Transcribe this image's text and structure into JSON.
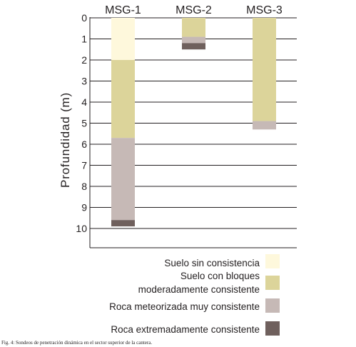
{
  "chart_data": {
    "type": "bar",
    "ylabel": "Profundidad (m)",
    "ylim": [
      0,
      11
    ],
    "yticks": [
      "0",
      "1",
      "2",
      "3",
      "4",
      "5",
      "6",
      "7",
      "8",
      "9",
      "10"
    ],
    "y_inverted": true,
    "grid": true,
    "legend_position": "bottom-right",
    "categories": [
      "MSG-1",
      "MSG-2",
      "MSG-3"
    ],
    "layer_types": [
      {
        "key": "suelo_sin",
        "name": "Suelo sin consistencia",
        "lines": [
          "Suelo sin consistencia"
        ],
        "color": "#fef8dc"
      },
      {
        "key": "suelo_bloques",
        "name": "Suelo con bloques moderadamente consistente",
        "lines": [
          "Suelo con bloques",
          "moderadamente consistente"
        ],
        "color": "#dcd49a"
      },
      {
        "key": "roca_meteorizada",
        "name": "Roca meteorizada muy consistente",
        "lines": [
          "Roca meteorizada muy consistente"
        ],
        "color": "#c6b9b6"
      },
      {
        "key": "roca_extrema",
        "name": "Roca extremadamente consistente",
        "lines": [
          "Roca extremadamente consistente"
        ],
        "color": "#6f605d"
      }
    ],
    "columns": [
      {
        "name": "MSG-1",
        "layers": [
          {
            "type": "suelo_sin",
            "from": 0,
            "to": 2.0
          },
          {
            "type": "suelo_bloques",
            "from": 2.0,
            "to": 5.7
          },
          {
            "type": "roca_meteorizada",
            "from": 5.7,
            "to": 9.6
          },
          {
            "type": "roca_extrema",
            "from": 9.6,
            "to": 9.9
          }
        ]
      },
      {
        "name": "MSG-2",
        "layers": [
          {
            "type": "suelo_bloques",
            "from": 0,
            "to": 0.9
          },
          {
            "type": "roca_meteorizada",
            "from": 0.9,
            "to": 1.2
          },
          {
            "type": "roca_extrema",
            "from": 1.2,
            "to": 1.5
          }
        ]
      },
      {
        "name": "MSG-3",
        "layers": [
          {
            "type": "suelo_bloques",
            "from": 0,
            "to": 4.9
          },
          {
            "type": "roca_meteorizada",
            "from": 4.9,
            "to": 5.3
          }
        ]
      }
    ]
  },
  "caption": "Fig. 4: Sondeos de penetración dinámica en el sector superior de la cantera."
}
